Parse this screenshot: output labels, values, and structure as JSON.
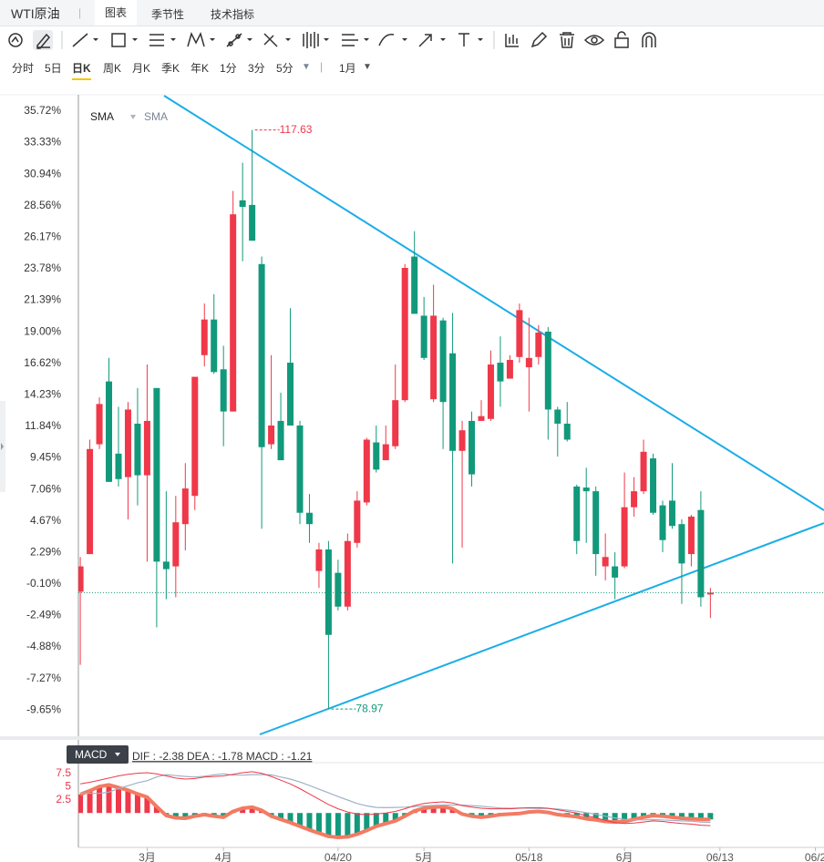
{
  "ui": {
    "instrument": "WTI原油",
    "tabs": [
      "图表",
      "季节性",
      "技术指标"
    ],
    "timeframes": [
      "分时",
      "5日",
      "日K",
      "周K",
      "月K",
      "季K",
      "年K",
      "1分",
      "3分",
      "5分"
    ],
    "period": "1月"
  },
  "chart_data": [
    {
      "type": "candlestick",
      "indicators": [
        "SMA",
        "SMA"
      ],
      "open": [
        -0.69,
        2.16,
        10.48,
        15.24,
        9.77,
        7.99,
        12.04,
        8.13,
        14.74,
        1.59,
        1.23,
        4.43,
        6.57,
        17.23,
        19.93,
        16.16,
        12.96,
        28.96,
        28.61,
        24.13,
        10.48,
        12.25,
        16.66,
        11.9,
        5.29,
        0.88,
        2.51,
        0.74,
        -1.82,
        3.01,
        6.07,
        10.62,
        9.27,
        10.33,
        13.82,
        24.7,
        20.22,
        13.89,
        19.86,
        17.37,
        9.98,
        12.25,
        12.25,
        12.4,
        16.66,
        15.45,
        17.09,
        16.31,
        17.09,
        19.01,
        13.11,
        12.04,
        7.28,
        7.2,
        6.92,
        1.23,
        1.23,
        1.23,
        5.71,
        6.92,
        9.41,
        5.85,
        6.21,
        4.43,
        2.16,
        5.5,
        -0.9
      ],
      "high": [
        1.94,
        10.83,
        14.03,
        17.02,
        13.32,
        13.68,
        14.74,
        16.52,
        14.74,
        6.92,
        6.57,
        9.05,
        15.59,
        21.14,
        21.85,
        17.94,
        29.67,
        31.81,
        34.29,
        24.7,
        17.23,
        14.39,
        20.79,
        12.25,
        6.71,
        3.01,
        3.15,
        1.73,
        3.72,
        6.92,
        10.97,
        11.9,
        11.9,
        16.52,
        24.13,
        26.62,
        21.64,
        22.56,
        20.07,
        20.43,
        12.25,
        12.96,
        13.82,
        17.59,
        18.65,
        17.23,
        21.14,
        20.07,
        19.51,
        19.36,
        13.32,
        13.68,
        7.42,
        8.7,
        7.28,
        3.72,
        2.3,
        8.34,
        7.99,
        10.83,
        9.77,
        6.21,
        9.05,
        4.79,
        5.14,
        6.92,
        -0.4
      ],
      "low": [
        -6.23,
        2.16,
        10.12,
        7.63,
        7.28,
        4.79,
        5.85,
        1.59,
        -3.39,
        -1.26,
        -1.11,
        2.44,
        5.5,
        16.38,
        15.81,
        10.33,
        12.96,
        24.34,
        25.9,
        4.08,
        10.12,
        9.27,
        11.9,
        4.43,
        3.01,
        -0.4,
        -9.58,
        -2.11,
        -2.11,
        2.65,
        5.85,
        8.34,
        9.27,
        10.12,
        13.68,
        20.36,
        16.87,
        13.68,
        10.12,
        1.45,
        2.65,
        7.28,
        12.25,
        12.25,
        13.32,
        15.45,
        16.66,
        12.96,
        16.52,
        10.83,
        9.55,
        10.69,
        2.16,
        3.01,
        0.52,
        0.17,
        -1.26,
        1.09,
        5.0,
        6.71,
        5.14,
        2.3,
        4.08,
        -1.61,
        1.23,
        -1.82,
        -2.68
      ],
      "close": [
        1.23,
        10.12,
        13.53,
        7.63,
        7.84,
        13.11,
        8.13,
        12.25,
        1.59,
        1.02,
        4.57,
        7.13,
        15.59,
        19.93,
        15.95,
        12.96,
        27.9,
        28.46,
        25.9,
        10.26,
        11.9,
        9.27,
        11.9,
        5.29,
        4.43,
        2.51,
        -3.96,
        -1.82,
        3.15,
        6.21,
        10.83,
        8.56,
        10.48,
        13.82,
        23.84,
        20.36,
        17.02,
        20.22,
        13.68,
        9.98,
        11.54,
        8.2,
        12.61,
        16.52,
        15.24,
        16.87,
        20.64,
        17.02,
        18.94,
        13.11,
        12.04,
        10.83,
        3.15,
        6.92,
        2.16,
        1.94,
        0.38,
        5.71,
        6.92,
        9.91,
        5.29,
        3.22,
        4.29,
        1.45,
        5.0,
        -1.11,
        -0.76
      ],
      "up_color": "#ef3849",
      "down_color": "#12997b",
      "xlim": [
        -0.2,
        77.9
      ],
      "ylim": [
        -11.64,
        38.06
      ],
      "yticks": [
        {
          "value": 35.72,
          "label": "35.72%"
        },
        {
          "value": 33.33,
          "label": "33.33%"
        },
        {
          "value": 30.94,
          "label": "30.94%"
        },
        {
          "value": 28.56,
          "label": "28.56%"
        },
        {
          "value": 26.17,
          "label": "26.17%"
        },
        {
          "value": 23.78,
          "label": "23.78%"
        },
        {
          "value": 21.39,
          "label": "21.39%"
        },
        {
          "value": 19,
          "label": "19.00%"
        },
        {
          "value": 16.62,
          "label": "16.62%"
        },
        {
          "value": 14.23,
          "label": "14.23%"
        },
        {
          "value": 11.84,
          "label": "11.84%"
        },
        {
          "value": 9.45,
          "label": "9.45%"
        },
        {
          "value": 7.06,
          "label": "7.06%"
        },
        {
          "value": 4.67,
          "label": "4.67%"
        },
        {
          "value": 2.29,
          "label": "2.29%"
        },
        {
          "value": -0.1,
          "label": "-0.10%"
        },
        {
          "value": -2.49,
          "label": "-2.49%"
        },
        {
          "value": -4.88,
          "label": "-4.88%"
        },
        {
          "value": -7.27,
          "label": "-7.27%"
        },
        {
          "value": -9.65,
          "label": "-9.65%"
        }
      ],
      "high_label": 117.63,
      "low_label": 78.97
    },
    {
      "type": "macd",
      "indicator": "MACD",
      "readout": "DIF : -2.38  DEA : -1.78  MACD : -1.21",
      "dif": {
        "color": "#ef3849",
        "values": [
          5.5,
          5.8,
          6.2,
          6.6,
          7.0,
          7.3,
          7.5,
          7.6,
          7.4,
          7.0,
          6.6,
          6.4,
          6.5,
          6.8,
          6.9,
          7.0,
          7.3,
          7.6,
          7.8,
          7.5,
          6.9,
          6.2,
          5.5,
          4.6,
          3.6,
          2.6,
          1.6,
          0.8,
          0.2,
          -0.2,
          -0.3,
          -0.2,
          0.0,
          0.3,
          0.8,
          1.4,
          1.8,
          2.0,
          2.1,
          1.9,
          1.4,
          1.1,
          0.9,
          0.8,
          0.8,
          0.8,
          0.9,
          1.0,
          1.0,
          0.9,
          0.6,
          0.3,
          0.0,
          -0.5,
          -0.9,
          -1.4,
          -1.8,
          -2.0,
          -1.9,
          -1.7,
          -1.5,
          -1.6,
          -1.8,
          -2.0,
          -2.1,
          -2.3,
          -2.38
        ]
      },
      "dea": {
        "color": "#9fb2c6",
        "values": [
          3.75,
          3.7,
          3.7,
          3.95,
          4.6,
          5.15,
          5.7,
          6.1,
          6.8,
          7.25,
          7.05,
          6.9,
          6.8,
          6.95,
          7.2,
          7.4,
          7.15,
          7.15,
          7.25,
          7.25,
          7.2,
          6.8,
          6.4,
          5.85,
          5.2,
          4.5,
          3.8,
          3.1,
          2.45,
          1.8,
          1.35,
          1.05,
          1.0,
          1.05,
          1.1,
          1.2,
          1.35,
          1.45,
          1.5,
          1.5,
          1.5,
          1.4,
          1.3,
          1.1,
          0.95,
          0.9,
          0.95,
          0.9,
          0.85,
          0.85,
          0.75,
          0.55,
          0.35,
          0.05,
          -0.25,
          -0.6,
          -0.95,
          -1.2,
          -1.3,
          -1.3,
          -1.25,
          -1.3,
          -1.4,
          -1.5,
          -1.55,
          -1.7,
          -1.78
        ]
      },
      "histogram": {
        "up_color": "#ef3849",
        "down_color": "#12997b",
        "line_color": "#f27b62",
        "values": [
          3.5,
          4.2,
          5.0,
          5.3,
          4.8,
          4.3,
          3.6,
          3.0,
          1.2,
          -0.5,
          -0.9,
          -1.0,
          -0.6,
          -0.3,
          -0.6,
          -0.8,
          0.3,
          0.9,
          1.1,
          0.5,
          -0.6,
          -1.2,
          -1.8,
          -2.5,
          -3.2,
          -3.8,
          -4.4,
          -4.6,
          -4.5,
          -4.0,
          -3.3,
          -2.5,
          -2.0,
          -1.5,
          -0.6,
          0.4,
          0.9,
          1.1,
          1.2,
          0.8,
          -0.2,
          -0.6,
          -0.8,
          -0.6,
          -0.3,
          -0.2,
          -0.1,
          0.2,
          0.3,
          0.1,
          -0.3,
          -0.5,
          -0.7,
          -1.1,
          -1.3,
          -1.6,
          -1.7,
          -1.6,
          -1.2,
          -0.8,
          -0.5,
          -0.6,
          -0.8,
          -1.0,
          -1.1,
          -1.2,
          -1.21
        ]
      },
      "xlim": [
        -0.2,
        77.9
      ],
      "ylim": [
        -6.5,
        9.5
      ],
      "yticks": [
        7.5,
        5,
        2.5
      ],
      "xticks": [
        {
          "value": 7,
          "label": "3月"
        },
        {
          "value": 15,
          "label": "4月"
        },
        {
          "value": 27,
          "label": "04/20"
        },
        {
          "value": 36,
          "label": "5月"
        },
        {
          "value": 47,
          "label": "05/18"
        },
        {
          "value": 57,
          "label": "6月"
        },
        {
          "value": 67,
          "label": "06/13"
        },
        {
          "value": 77,
          "label": "06/2"
        }
      ]
    }
  ]
}
